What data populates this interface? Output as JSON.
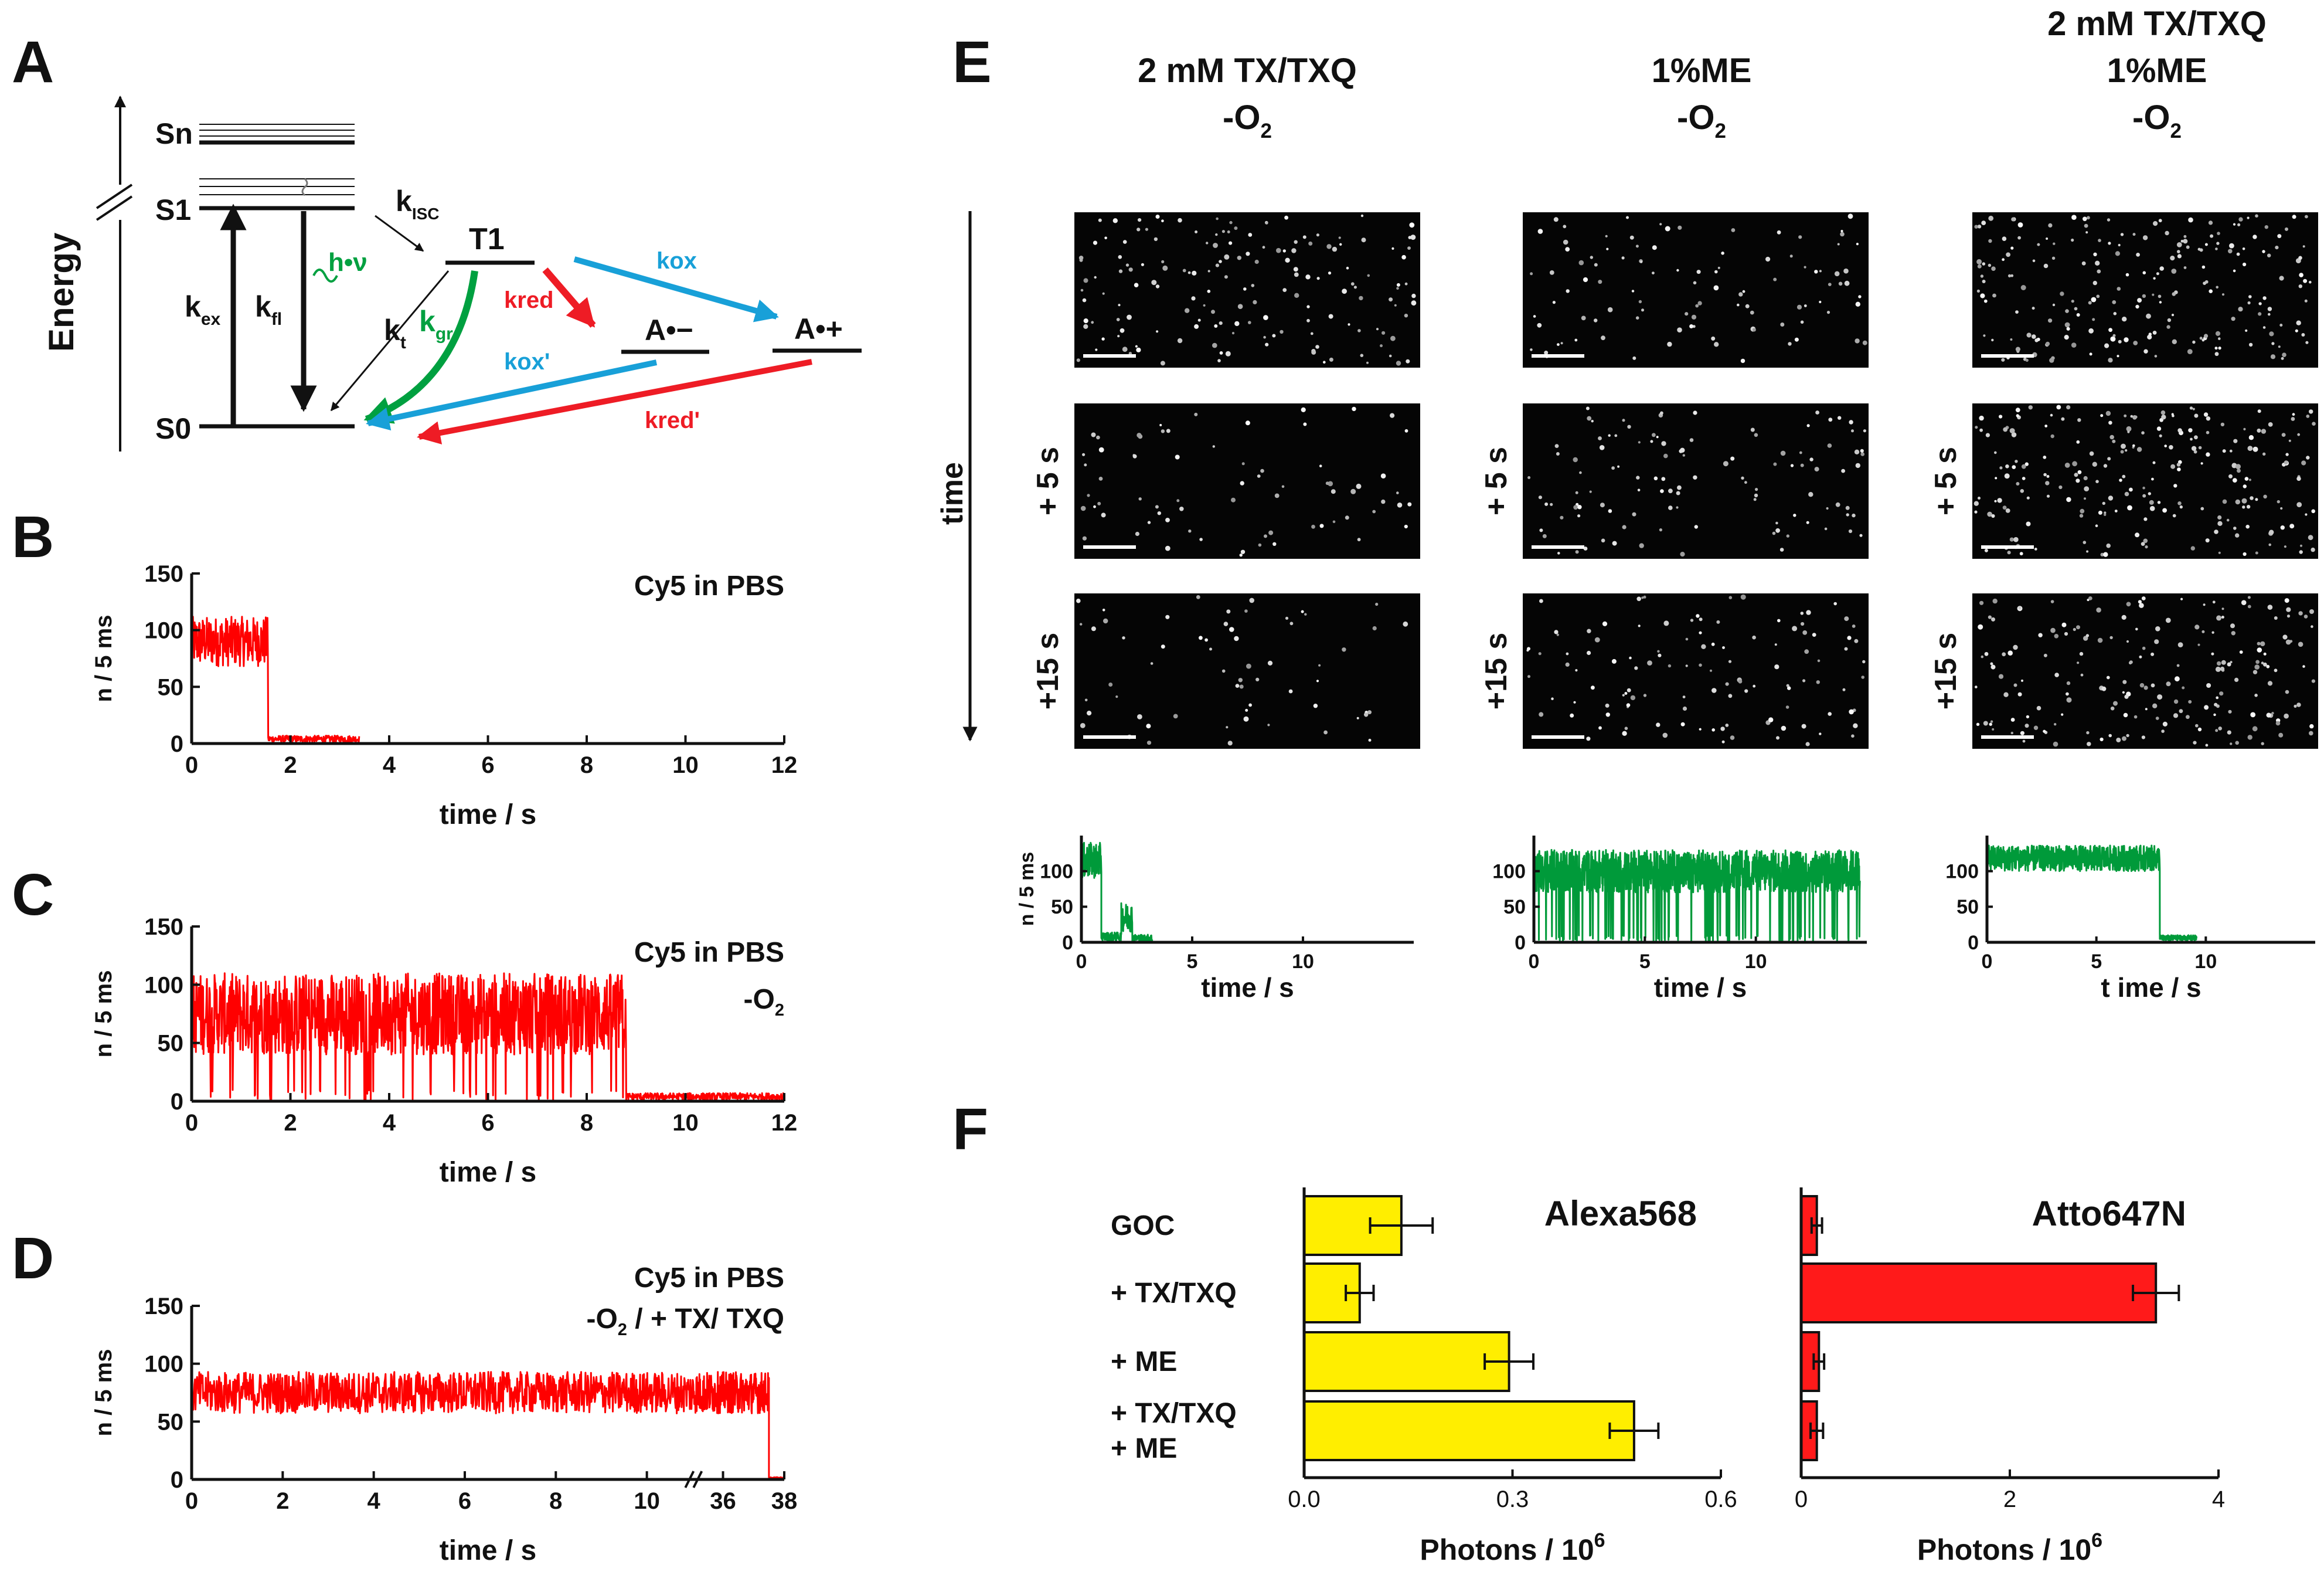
{
  "panel_letters": {
    "A": "A",
    "B": "B",
    "C": "C",
    "D": "D",
    "E": "E",
    "F": "F"
  },
  "colors": {
    "trace_red": "#ff0000",
    "trace_green": "#009a3a",
    "arrow_green": "#00a040",
    "arrow_blue": "#18a0d8",
    "arrow_red": "#ee1c25",
    "bar_yellow": "#ffee00",
    "bar_red": "#ff1a1a",
    "image_bg": "#050505",
    "axis": "#111111"
  },
  "jablonski": {
    "energy_label": "Energy",
    "levels": {
      "sn": "Sn",
      "s1": "S1",
      "s0": "S0",
      "t1": "T1",
      "a_minus": "A•−",
      "a_plus": "A•+"
    },
    "rates": {
      "k_ex": "k",
      "k_ex_sub": "ex",
      "k_fl": "k",
      "k_fl_sub": "fl",
      "k_t": "k",
      "k_t_sub": "t",
      "k_isc": "k",
      "k_isc_sub": "ISC",
      "h_nu": "h•ν",
      "k_gr": "k",
      "k_gr_sub": "gr",
      "k_red": "k",
      "k_red_sub": "red",
      "k_ox": "k",
      "k_ox_sub": "ox",
      "k_ox_prime": "k",
      "k_ox_prime_sub": "ox'",
      "k_red_prime": "k",
      "k_red_prime_sub": "red'"
    }
  },
  "chart_data": [
    {
      "id": "B",
      "type": "line",
      "title": "Cy5 in PBS",
      "xlabel": "time / s",
      "ylabel": "n / 5 ms",
      "xlim": [
        0,
        12
      ],
      "ylim": [
        0,
        150
      ],
      "xticks": [
        "0",
        "2",
        "4",
        "6",
        "8",
        "10",
        "12"
      ],
      "yticks": [
        "0",
        "50",
        "100",
        "150"
      ],
      "series": [
        {
          "name": "Cy5 in PBS",
          "segments": [
            {
              "x0": 0,
              "x1": 1.55,
              "mean": 90,
              "noise": 22
            },
            {
              "x0": 1.55,
              "x1": 3.4,
              "mean": 4,
              "noise": 3
            }
          ]
        }
      ]
    },
    {
      "id": "C",
      "type": "line",
      "title": "Cy5 in PBS",
      "subtitle": "-O",
      "subtitle_sub": "2",
      "xlabel": "time / s",
      "ylabel": "n / 5 ms",
      "xlim": [
        0,
        12
      ],
      "ylim": [
        0,
        150
      ],
      "xticks": [
        "0",
        "2",
        "4",
        "6",
        "8",
        "10",
        "12"
      ],
      "yticks": [
        "0",
        "50",
        "100",
        "150"
      ],
      "series": [
        {
          "name": "Cy5 in PBS -O2",
          "segments": [
            {
              "x0": 0,
              "x1": 8.8,
              "mean": 75,
              "noise": 35,
              "blinking": true
            },
            {
              "x0": 8.8,
              "x1": 12,
              "mean": 4,
              "noise": 3
            }
          ]
        }
      ]
    },
    {
      "id": "D",
      "type": "line",
      "title": "Cy5 in PBS",
      "subtitle": "-O",
      "subtitle_sub": "2",
      "subtitle_tail": " / + TX/ TXQ",
      "xlabel": "time / s",
      "ylabel": "n / 5 ms",
      "xlim": [
        0,
        38
      ],
      "ylim": [
        0,
        150
      ],
      "xticks": [
        "0",
        "2",
        "4",
        "6",
        "8",
        "10",
        "36",
        "38"
      ],
      "yticks": [
        "0",
        "50",
        "100",
        "150"
      ],
      "series": [
        {
          "name": "Cy5 in PBS -O2 / +TX/TXQ",
          "segments": [
            {
              "x0": 0,
              "x1": 37.5,
              "mean": 75,
              "noise": 18
            },
            {
              "x0": 37.5,
              "x1": 38,
              "mean": 1,
              "noise": 1
            }
          ]
        }
      ]
    },
    {
      "id": "E1",
      "type": "line",
      "title": "2 mM TX/TXQ",
      "subtitle": "-O",
      "subtitle_sub": "2",
      "xlabel": "time / s",
      "ylabel": "n / 5 ms",
      "xlim": [
        0,
        15
      ],
      "ylim": [
        0,
        150
      ],
      "xticks": [
        "0",
        "5",
        "10"
      ],
      "yticks": [
        "0",
        "50",
        "100"
      ],
      "series": [
        {
          "name": "2 mM TX/TXQ -O2",
          "segments": [
            {
              "x0": 0,
              "x1": 0.9,
              "mean": 115,
              "noise": 25
            },
            {
              "x0": 0.9,
              "x1": 1.8,
              "mean": 8,
              "noise": 6
            },
            {
              "x0": 1.8,
              "x1": 2.3,
              "mean": 35,
              "noise": 20
            },
            {
              "x0": 2.3,
              "x1": 3.2,
              "mean": 6,
              "noise": 5
            }
          ]
        }
      ]
    },
    {
      "id": "E2",
      "type": "line",
      "title": "1%ME",
      "subtitle": "-O",
      "subtitle_sub": "2",
      "xlabel": "time / s",
      "ylabel": "",
      "xlim": [
        0,
        15
      ],
      "ylim": [
        0,
        150
      ],
      "xticks": [
        "0",
        "5",
        "10"
      ],
      "yticks": [
        "0",
        "50",
        "100"
      ],
      "series": [
        {
          "name": "1%ME -O2",
          "segments": [
            {
              "x0": 0,
              "x1": 14.7,
              "mean": 100,
              "noise": 30,
              "blinking": true
            }
          ]
        }
      ]
    },
    {
      "id": "E3",
      "type": "line",
      "title": "2 mM TX/TXQ",
      "title2": "1%ME",
      "subtitle": "-O",
      "subtitle_sub": "2",
      "xlabel": "t ime / s",
      "ylabel": "",
      "xlim": [
        0,
        15
      ],
      "ylim": [
        0,
        150
      ],
      "xticks": [
        "0",
        "5",
        "10"
      ],
      "yticks": [
        "0",
        "50",
        "100"
      ],
      "series": [
        {
          "name": "2 mM TX/TXQ 1%ME -O2",
          "segments": [
            {
              "x0": 0,
              "x1": 7.9,
              "mean": 118,
              "noise": 18
            },
            {
              "x0": 7.9,
              "x1": 9.6,
              "mean": 6,
              "noise": 4
            }
          ]
        }
      ]
    },
    {
      "id": "F1",
      "type": "bar",
      "orientation": "horizontal",
      "title": "Alexa568",
      "xlabel": "Photons / 10",
      "xlabel_sup": "6",
      "categories": [
        "GOC",
        "+ TX/TXQ",
        "+ ME",
        "+ TX/TXQ\n+ ME"
      ],
      "values": [
        0.14,
        0.08,
        0.295,
        0.475
      ],
      "errors": [
        0.045,
        0.02,
        0.035,
        0.035
      ],
      "xlim": [
        0,
        0.6
      ],
      "xticks": [
        "0.0",
        "0.3",
        "0.6"
      ],
      "color": "#ffee00"
    },
    {
      "id": "F2",
      "type": "bar",
      "orientation": "horizontal",
      "title": "Atto647N",
      "xlabel": "Photons / 10",
      "xlabel_sup": "6",
      "categories": [
        "GOC",
        "+ TX/TXQ",
        "+ ME",
        "+ TX/TXQ\n+ ME"
      ],
      "values": [
        0.15,
        3.4,
        0.17,
        0.15
      ],
      "errors": [
        0.05,
        0.22,
        0.05,
        0.06
      ],
      "xlim": [
        0,
        4
      ],
      "xticks": [
        "0",
        "2",
        "4"
      ],
      "color": "#ff1a1a"
    }
  ],
  "panel_e": {
    "time_label": "time",
    "row_labels": [
      "+ 5 s",
      "+15 s"
    ],
    "columns": [
      {
        "lines": [
          "2 mM TX/TXQ"
        ],
        "last": "-O",
        "last_sub": "2",
        "spots": [
          160,
          70,
          60
        ]
      },
      {
        "lines": [
          "1%ME"
        ],
        "last": "-O",
        "last_sub": "2",
        "spots": [
          100,
          110,
          115
        ]
      },
      {
        "lines": [
          "2 mM TX/TXQ",
          "1%ME"
        ],
        "last": "-O",
        "last_sub": "2",
        "spots": [
          220,
          230,
          200
        ]
      }
    ]
  }
}
